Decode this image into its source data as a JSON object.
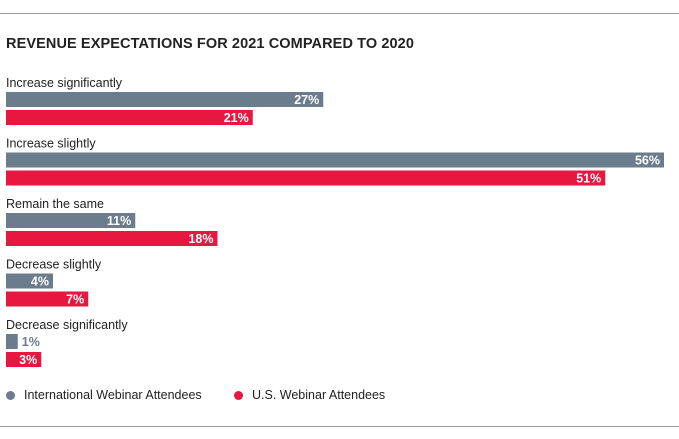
{
  "chart_data": {
    "type": "bar",
    "orientation": "horizontal",
    "title": "REVENUE EXPECTATIONS FOR 2021 COMPARED TO 2020",
    "categories": [
      "Increase significantly",
      "Increase slightly",
      "Remain the same",
      "Decrease slightly",
      "Decrease significantly"
    ],
    "series": [
      {
        "name": "International Webinar Attendees",
        "values": [
          27,
          56,
          11,
          4,
          1
        ],
        "color": "#6b7c8d"
      },
      {
        "name": "U.S. Webinar Attendees",
        "values": [
          21,
          51,
          18,
          7,
          3
        ],
        "color": "#e8173f"
      }
    ],
    "value_format": "{v}%",
    "xlim": [
      0,
      56
    ],
    "legend_position": "bottom-left"
  }
}
